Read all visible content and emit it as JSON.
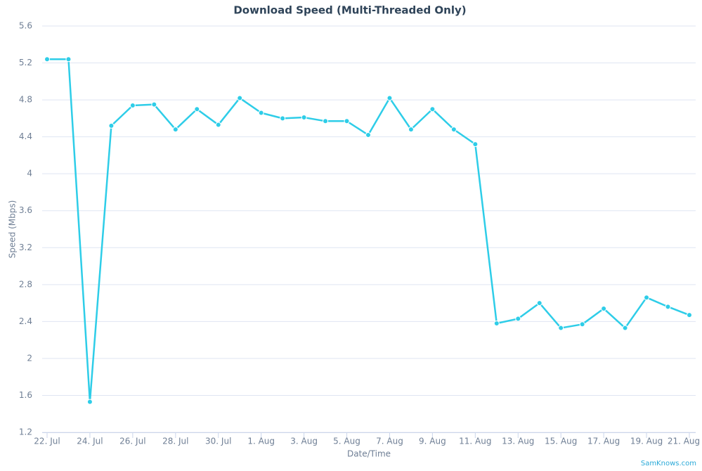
{
  "chart_data": {
    "type": "line",
    "title": "Download Speed (Multi-Threaded Only)",
    "y_label": "Speed (Mbps)",
    "x_label": "Date/Time",
    "credit": "SamKnows.com",
    "categories": [
      "22. Jul",
      null,
      "24. Jul",
      null,
      "26. Jul",
      null,
      "28. Jul",
      null,
      "30. Jul",
      null,
      "1. Aug",
      null,
      "3. Aug",
      null,
      "5. Aug",
      null,
      "7. Aug",
      null,
      "9. Aug",
      null,
      "11. Aug",
      null,
      "13. Aug",
      null,
      "15. Aug",
      null,
      "17. Aug",
      null,
      "19. Aug",
      null,
      "21. Aug"
    ],
    "series": [
      {
        "name": "Download Speed",
        "color": "#2ecde8",
        "values": [
          5.24,
          5.24,
          1.53,
          4.52,
          4.74,
          4.75,
          4.48,
          4.7,
          4.53,
          4.82,
          4.66,
          4.6,
          4.61,
          4.57,
          4.57,
          4.42,
          4.82,
          4.48,
          4.7,
          4.48,
          4.32,
          2.38,
          2.43,
          2.6,
          2.33,
          2.37,
          2.54,
          2.33,
          2.66,
          2.56,
          2.47
        ]
      }
    ],
    "ylim": [
      1.2,
      5.6
    ],
    "yticks": [
      1.2,
      1.6,
      2,
      2.4,
      2.8,
      3.2,
      3.6,
      4,
      4.4,
      4.8,
      5.2,
      5.6
    ],
    "grid": true
  }
}
